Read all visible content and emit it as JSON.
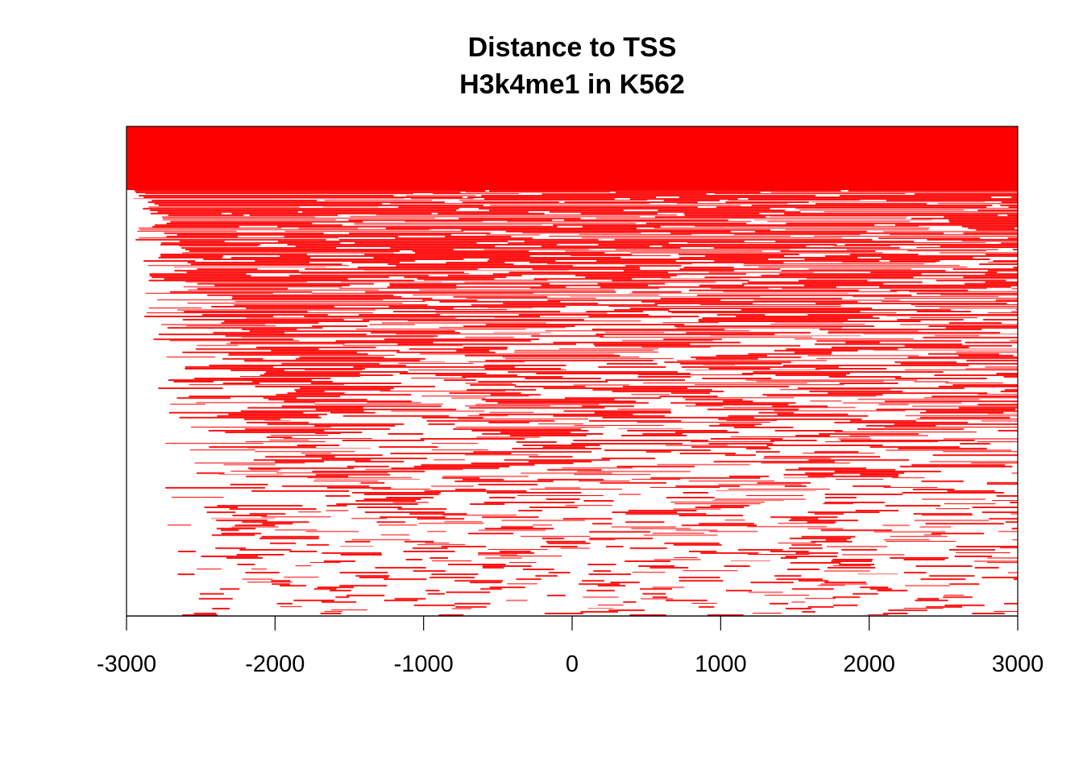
{
  "chart_data": {
    "type": "heatmap",
    "title": "Distance to TSS",
    "subtitle": "H3k4me1 in K562",
    "xlabel": "",
    "ylabel": "",
    "xlim": [
      -3000,
      3000
    ],
    "x_ticks": [
      -3000,
      -2000,
      -1000,
      0,
      1000,
      2000,
      3000
    ],
    "tick_labels": [
      "-3000",
      "-2000",
      "-1000",
      "0",
      "1000",
      "2000",
      "3000"
    ],
    "y_axis_shown": false,
    "grid": false,
    "legend": "none",
    "colors": {
      "primary": "#ff0000",
      "secondary": "#ff6666",
      "background": "#ffffff",
      "frame": "#000000"
    },
    "rows_description_values": {
      "row_count": 300,
      "dense_fraction_top": 0.13,
      "typical_interval_length_bp": [
        50,
        900
      ]
    }
  }
}
